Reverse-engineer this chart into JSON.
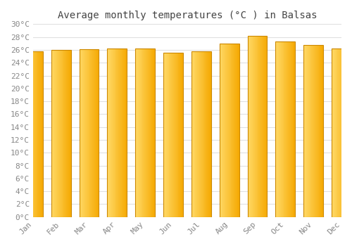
{
  "title": "Average monthly temperatures (°C ) in Balsas",
  "months": [
    "Jan",
    "Feb",
    "Mar",
    "Apr",
    "May",
    "Jun",
    "Jul",
    "Aug",
    "Sep",
    "Oct",
    "Nov",
    "Dec"
  ],
  "values": [
    25.8,
    26.0,
    26.1,
    26.2,
    26.2,
    25.6,
    25.8,
    27.0,
    28.2,
    27.3,
    26.8,
    26.2
  ],
  "bar_color_left": "#FFD966",
  "bar_color_right": "#F5A800",
  "bar_border_color": "#CC8800",
  "ylim": [
    0,
    30
  ],
  "ytick_step": 2,
  "background_color": "#ffffff",
  "grid_color": "#e0e0e0",
  "title_fontsize": 10,
  "tick_fontsize": 8,
  "bar_width": 0.7
}
